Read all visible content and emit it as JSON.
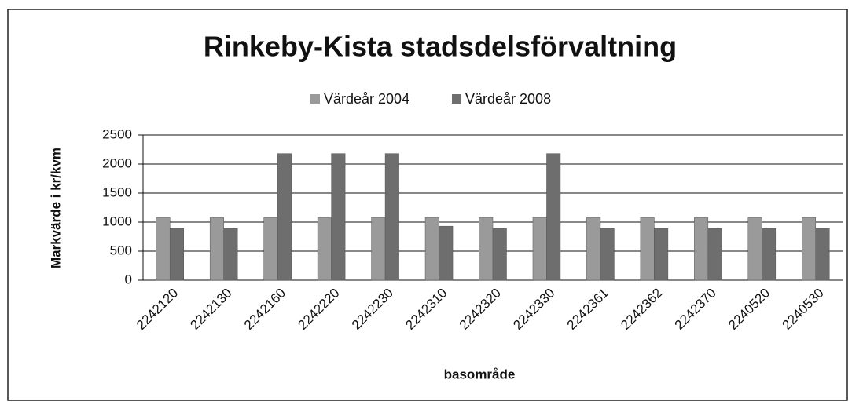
{
  "chart_data": {
    "type": "bar",
    "title": "Rinkeby-Kista stadsdelsförvaltning",
    "x_label": "basområde",
    "y_label": "Markvärde i kr/kvm",
    "categories": [
      "2242120",
      "2242130",
      "2242160",
      "2242220",
      "2242230",
      "2242310",
      "2242320",
      "2242330",
      "2242361",
      "2242362",
      "2242370",
      "2240520",
      "2240530"
    ],
    "series": [
      {
        "name": "Värdeår 2004",
        "color": "#9a9a9a",
        "values": [
          1080,
          1080,
          1080,
          1080,
          1080,
          1080,
          1080,
          1080,
          1080,
          1080,
          1080,
          1080,
          1080
        ]
      },
      {
        "name": "Värdeår 2008",
        "color": "#6e6e6e",
        "values": [
          890,
          890,
          2180,
          2180,
          2180,
          930,
          890,
          2180,
          890,
          890,
          890,
          890,
          890
        ]
      }
    ],
    "ylim": [
      0,
      2500
    ],
    "yticks": [
      0,
      500,
      1000,
      1500,
      2000,
      2500
    ],
    "grid": true,
    "legend": "top"
  }
}
